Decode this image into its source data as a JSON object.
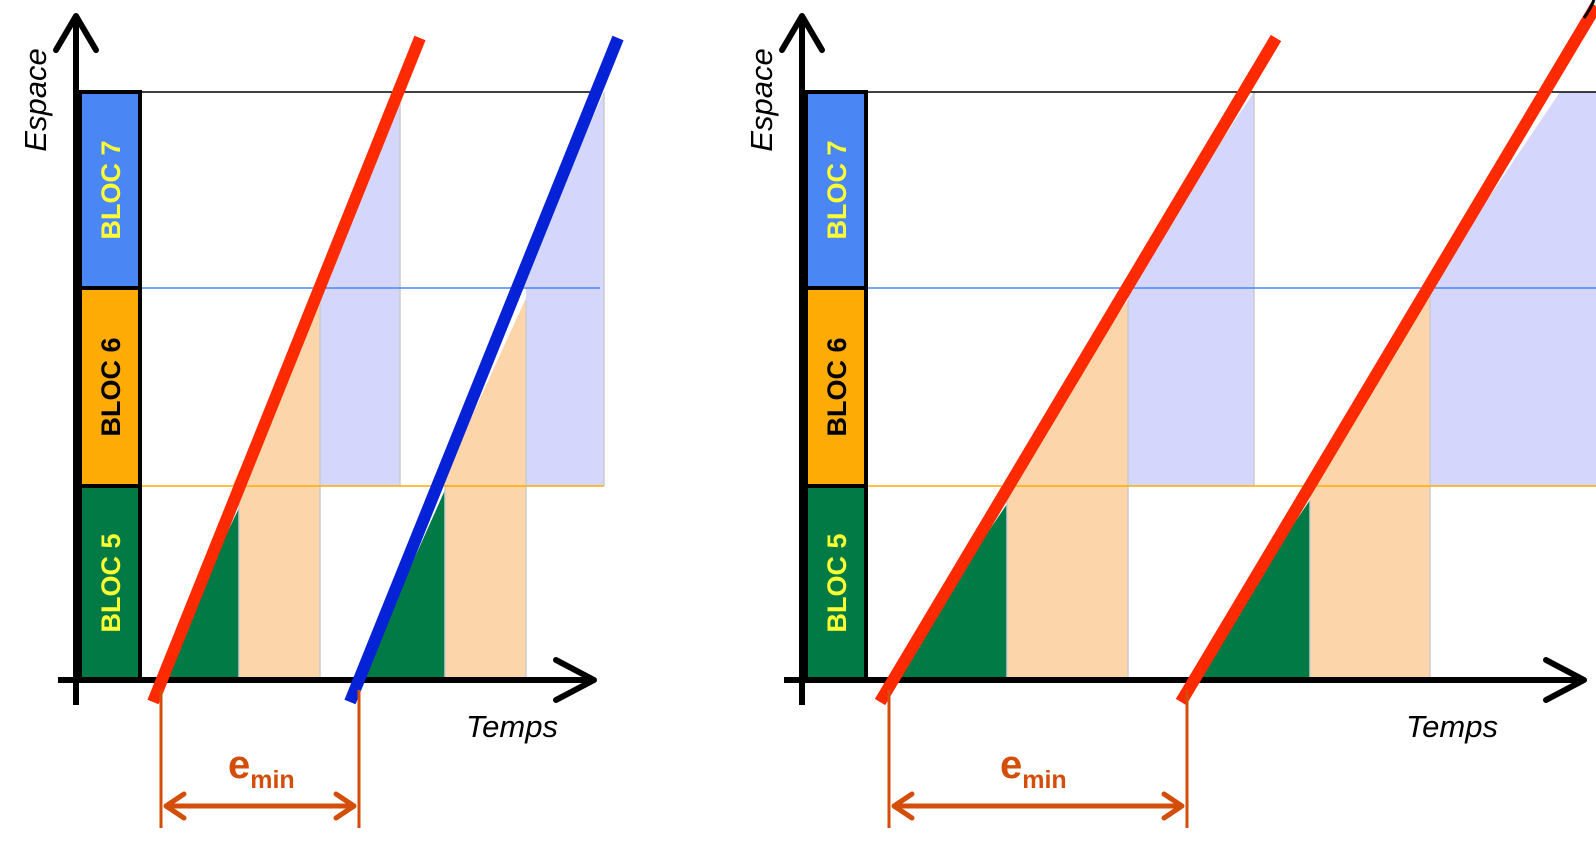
{
  "colors": {
    "bloc_5": "#017a45",
    "bloc_6": "#ffab05",
    "bloc_7": "#4a86f4",
    "bloc_label_light": "#ffff33",
    "bloc_label_dark": "#000000",
    "red_line": "#ff2a00",
    "blue_line": "#0522d6",
    "occupation_green": "#017a45",
    "occupation_orange": "#fdd5aa",
    "occupation_blue": "#d4d6fb",
    "line_bloc_7": "#000000",
    "line_bloc_6": "#4a86f4",
    "line_bloc_5": "#ffab05",
    "emin_color": "#d34e0a"
  },
  "panels": [
    {
      "id": "left",
      "y_axis_label": "Espace",
      "x_axis_label": "Temps",
      "blocs": [
        {
          "label": "BLOC  7"
        },
        {
          "label": "BLOC  6"
        },
        {
          "label": "BLOC  5"
        }
      ],
      "emin": {
        "main": "e",
        "sub": "min"
      }
    },
    {
      "id": "right",
      "y_axis_label": "Espace",
      "x_axis_label": "Temps",
      "blocs": [
        {
          "label": "BLOC  7"
        },
        {
          "label": "BLOC  6"
        },
        {
          "label": "BLOC  5"
        }
      ],
      "emin": {
        "main": "e",
        "sub": "min"
      }
    }
  ]
}
